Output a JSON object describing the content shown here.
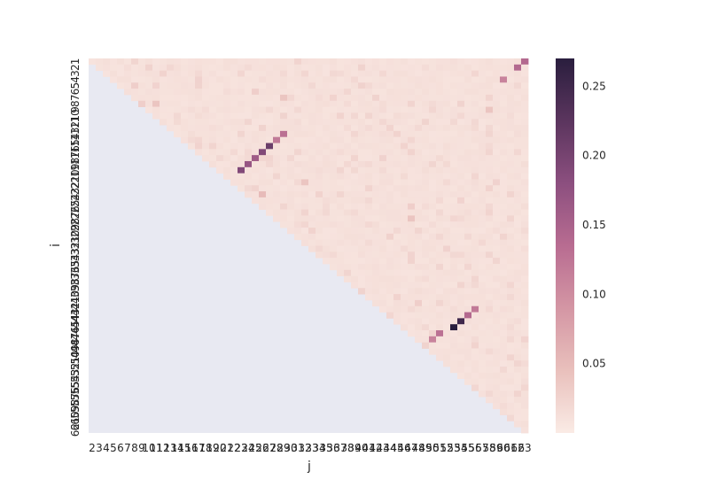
{
  "chart_data": {
    "type": "heatmap",
    "title": "",
    "xlabel": "j",
    "ylabel": "i",
    "x_categories": [
      "2",
      "3",
      "4",
      "5",
      "6",
      "7",
      "8",
      "9",
      "10",
      "11",
      "12",
      "13",
      "14",
      "15",
      "16",
      "17",
      "18",
      "19",
      "20",
      "21",
      "22",
      "23",
      "24",
      "25",
      "26",
      "27",
      "28",
      "29",
      "30",
      "31",
      "32",
      "33",
      "34",
      "35",
      "36",
      "37",
      "38",
      "39",
      "40",
      "41",
      "42",
      "43",
      "44",
      "45",
      "46",
      "47",
      "48",
      "49",
      "50",
      "51",
      "52",
      "53",
      "54",
      "55",
      "56",
      "57",
      "58",
      "59",
      "60",
      "61",
      "62",
      "63"
    ],
    "y_categories": [
      "1",
      "2",
      "3",
      "4",
      "5",
      "6",
      "7",
      "8",
      "9",
      "10",
      "11",
      "12",
      "13",
      "14",
      "15",
      "16",
      "17",
      "18",
      "19",
      "20",
      "21",
      "22",
      "23",
      "24",
      "25",
      "26",
      "27",
      "28",
      "29",
      "30",
      "31",
      "32",
      "33",
      "34",
      "35",
      "36",
      "37",
      "38",
      "39",
      "40",
      "41",
      "42",
      "43",
      "44",
      "45",
      "46",
      "47",
      "48",
      "49",
      "50",
      "51",
      "52",
      "53",
      "54",
      "55",
      "56",
      "57",
      "58",
      "59",
      "60",
      "61",
      "62"
    ],
    "mask": "lower-triangle (j <= i) masked",
    "colorbar": {
      "min": 0.0,
      "max": 0.27,
      "ticks": [
        "0.05",
        "0.10",
        "0.15",
        "0.20",
        "0.25"
      ],
      "tick_values": [
        0.05,
        0.1,
        0.15,
        0.2,
        0.25
      ],
      "colors": [
        "#faebe5",
        "#e9c0bc",
        "#d496a4",
        "#b86c91",
        "#8c4f7f",
        "#5b355e",
        "#2a1e3e"
      ]
    },
    "mask_color": "#e8e9f2",
    "background_value": 0.008,
    "highlights": [
      {
        "i": 1,
        "j": 63,
        "value": 0.14
      },
      {
        "i": 2,
        "j": 62,
        "value": 0.14
      },
      {
        "i": 4,
        "j": 60,
        "value": 0.11
      },
      {
        "i": 5,
        "j": 8,
        "value": 0.03
      },
      {
        "i": 6,
        "j": 25,
        "value": 0.03
      },
      {
        "i": 7,
        "j": 29,
        "value": 0.04
      },
      {
        "i": 8,
        "j": 9,
        "value": 0.03
      },
      {
        "i": 8,
        "j": 11,
        "value": 0.04
      },
      {
        "i": 9,
        "j": 27,
        "value": 0.02
      },
      {
        "i": 9,
        "j": 58,
        "value": 0.04
      },
      {
        "i": 10,
        "j": 9,
        "value": 0.02
      },
      {
        "i": 10,
        "j": 14,
        "value": 0.02
      },
      {
        "i": 11,
        "j": 53,
        "value": 0.02
      },
      {
        "i": 11,
        "j": 56,
        "value": 0.02
      },
      {
        "i": 12,
        "j": 7,
        "value": 0.05
      },
      {
        "i": 12,
        "j": 8,
        "value": 0.02
      },
      {
        "i": 13,
        "j": 29,
        "value": 0.13
      },
      {
        "i": 14,
        "j": 28,
        "value": 0.12
      },
      {
        "i": 15,
        "j": 27,
        "value": 0.21
      },
      {
        "i": 16,
        "j": 26,
        "value": 0.19
      },
      {
        "i": 17,
        "j": 25,
        "value": 0.16
      },
      {
        "i": 18,
        "j": 24,
        "value": 0.17
      },
      {
        "i": 19,
        "j": 23,
        "value": 0.19
      },
      {
        "i": 18,
        "j": 15,
        "value": 0.03
      },
      {
        "i": 17,
        "j": 20,
        "value": 0.02
      },
      {
        "i": 19,
        "j": 18,
        "value": 0.02
      },
      {
        "i": 21,
        "j": 32,
        "value": 0.04
      },
      {
        "i": 22,
        "j": 20,
        "value": 0.04
      },
      {
        "i": 22,
        "j": 24,
        "value": 0.02
      },
      {
        "i": 23,
        "j": 26,
        "value": 0.05
      },
      {
        "i": 24,
        "j": 41,
        "value": 0.02
      },
      {
        "i": 25,
        "j": 47,
        "value": 0.03
      },
      {
        "i": 26,
        "j": 35,
        "value": 0.02
      },
      {
        "i": 27,
        "j": 22,
        "value": 0.02
      },
      {
        "i": 27,
        "j": 47,
        "value": 0.04
      },
      {
        "i": 29,
        "j": 45,
        "value": 0.02
      },
      {
        "i": 30,
        "j": 55,
        "value": 0.02
      },
      {
        "i": 33,
        "j": 53,
        "value": 0.02
      },
      {
        "i": 38,
        "j": 56,
        "value": 0.02
      },
      {
        "i": 41,
        "j": 48,
        "value": 0.03
      },
      {
        "i": 42,
        "j": 56,
        "value": 0.12
      },
      {
        "i": 43,
        "j": 55,
        "value": 0.14
      },
      {
        "i": 44,
        "j": 54,
        "value": 0.25
      },
      {
        "i": 45,
        "j": 53,
        "value": 0.27
      },
      {
        "i": 46,
        "j": 51,
        "value": 0.13
      },
      {
        "i": 47,
        "j": 50,
        "value": 0.11
      },
      {
        "i": 46,
        "j": 45,
        "value": 0.04
      },
      {
        "i": 47,
        "j": 46,
        "value": 0.04
      },
      {
        "i": 47,
        "j": 44,
        "value": 0.03
      },
      {
        "i": 49,
        "j": 46,
        "value": 0.04
      },
      {
        "i": 50,
        "j": 47,
        "value": 0.03
      },
      {
        "i": 47,
        "j": 61,
        "value": 0.02
      },
      {
        "i": 52,
        "j": 60,
        "value": 0.02
      },
      {
        "i": 54,
        "j": 51,
        "value": 0.03
      },
      {
        "i": 56,
        "j": 58,
        "value": 0.02
      },
      {
        "i": 59,
        "j": 59,
        "value": 0.03
      },
      {
        "i": 60,
        "j": 61,
        "value": 0.02
      }
    ]
  }
}
